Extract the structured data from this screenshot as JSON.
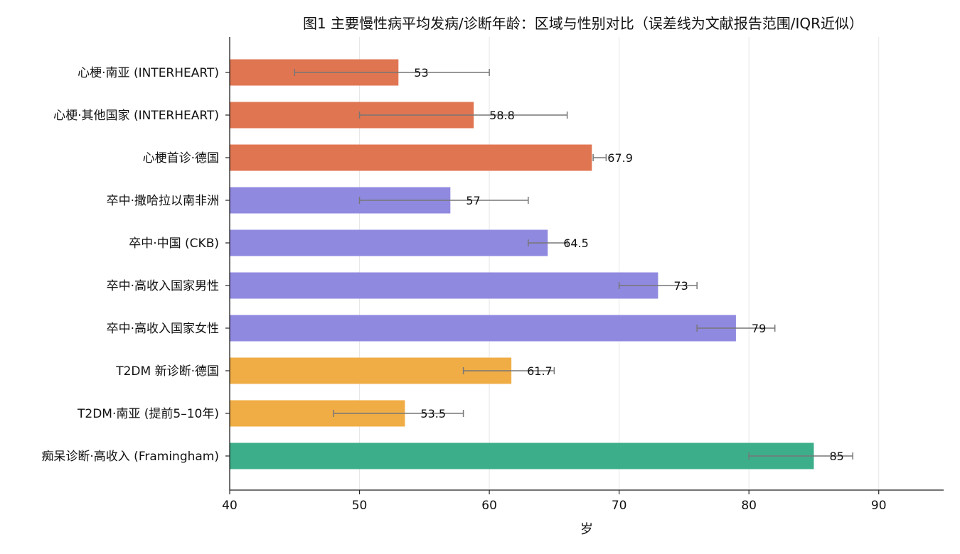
{
  "chart_data": {
    "type": "bar",
    "orientation": "horizontal",
    "title": "图1 主要慢性病平均发病/诊断年龄：区域与性别对比（误差线为文献报告范围/IQR近似）",
    "xlabel": "岁",
    "ylabel": "",
    "xlim": [
      40,
      95
    ],
    "xticks": [
      40,
      50,
      60,
      70,
      80,
      90
    ],
    "grid": "vertical",
    "categories": [
      "心梗·南亚 (INTERHEART)",
      "心梗·其他国家 (INTERHEART)",
      "心梗首诊·德国",
      "卒中·撒哈拉以南非洲",
      "卒中·中国 (CKB)",
      "卒中·高收入国家男性",
      "卒中·高收入国家女性",
      "T2DM 新诊断·德国",
      "T2DM·南亚 (提前5–10年)",
      "痴呆诊断·高收入 (Framingham)"
    ],
    "values": [
      53,
      58.8,
      67.9,
      57,
      64.5,
      73,
      79,
      61.7,
      53.5,
      85
    ],
    "value_labels": [
      "53",
      "58.8",
      "67.9",
      "57",
      "64.5",
      "73",
      "79",
      "61.7",
      "53.5",
      "85"
    ],
    "error_ranges": [
      [
        45,
        60
      ],
      [
        50,
        66
      ],
      [
        68,
        69
      ],
      [
        50,
        63
      ],
      [
        63,
        66
      ],
      [
        70,
        76
      ],
      [
        76,
        82
      ],
      [
        58,
        65
      ],
      [
        48,
        58
      ],
      [
        80,
        88
      ]
    ],
    "colors": [
      "#e07551",
      "#e07551",
      "#e07551",
      "#9089e0",
      "#9089e0",
      "#9089e0",
      "#9089e0",
      "#f0ad45",
      "#f0ad45",
      "#3dae8a"
    ],
    "error_color": "#777777"
  }
}
